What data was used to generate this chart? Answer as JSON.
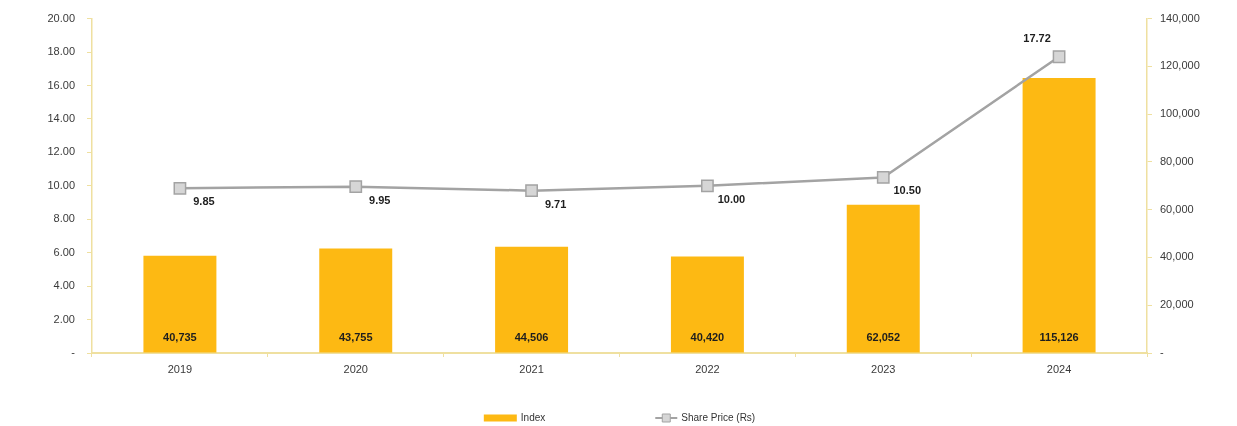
{
  "chart_data": {
    "type": "bar",
    "categories": [
      "2019",
      "2020",
      "2021",
      "2022",
      "2023",
      "2024"
    ],
    "series": [
      {
        "name": "Index",
        "axis": "y2",
        "color": "#fdb913",
        "values": [
          40735,
          43755,
          44506,
          40420,
          62052,
          115126
        ],
        "value_labels": [
          "40,735",
          "43,755",
          "44,506",
          "40,420",
          "62,052",
          "115,126"
        ]
      },
      {
        "name": "Share Price (Rs)",
        "type": "line",
        "color": "#a3a3a3",
        "values": [
          9.85,
          9.95,
          9.71,
          10.0,
          10.5,
          17.72
        ],
        "value_labels": [
          "9.85",
          "9.95",
          "9.71",
          "10.00",
          "10.50",
          "17.72"
        ]
      }
    ],
    "ylim": [
      0,
      20
    ],
    "yticks": [
      {
        "value": 0,
        "label": "-"
      },
      {
        "value": 2,
        "label": "2.00"
      },
      {
        "value": 4,
        "label": "4.00"
      },
      {
        "value": 6,
        "label": "6.00"
      },
      {
        "value": 8,
        "label": "8.00"
      },
      {
        "value": 10,
        "label": "10.00"
      },
      {
        "value": 12,
        "label": "12.00"
      },
      {
        "value": 14,
        "label": "14.00"
      },
      {
        "value": 16,
        "label": "16.00"
      },
      {
        "value": 18,
        "label": "18.00"
      },
      {
        "value": 20,
        "label": "20.00"
      }
    ],
    "y2lim": [
      0,
      140000
    ],
    "y2ticks": [
      {
        "value": 0,
        "label": "-"
      },
      {
        "value": 20000,
        "label": "20,000"
      },
      {
        "value": 40000,
        "label": "40,000"
      },
      {
        "value": 60000,
        "label": "60,000"
      },
      {
        "value": 80000,
        "label": "80,000"
      },
      {
        "value": 100000,
        "label": "100,000"
      },
      {
        "value": 120000,
        "label": "120,000"
      },
      {
        "value": 140000,
        "label": "140,000"
      }
    ],
    "legend": "bottom",
    "marker": "square",
    "line_style": "solid",
    "grid": false
  }
}
